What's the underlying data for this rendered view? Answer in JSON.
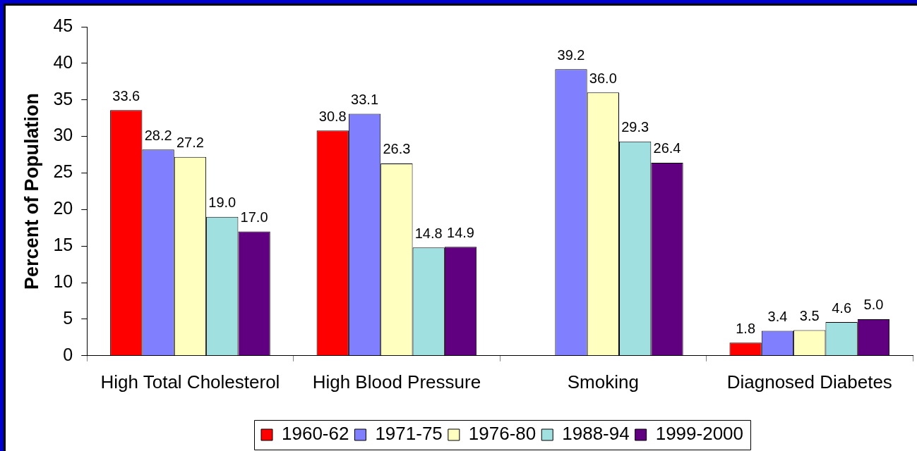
{
  "chart_data": {
    "type": "bar",
    "ylabel": "Percent of Population",
    "categories": [
      "High Total Cholesterol",
      "High Blood Pressure",
      "Smoking",
      "Diagnosed Diabetes"
    ],
    "series": [
      {
        "name": "1960-62",
        "color": "#ff0000",
        "values": [
          33.6,
          30.8,
          null,
          1.8
        ],
        "value_labels": [
          "33.6",
          "30.8",
          null,
          "1.8"
        ]
      },
      {
        "name": "1971-75",
        "color": "#8080ff",
        "values": [
          28.2,
          33.1,
          39.2,
          3.4
        ],
        "value_labels": [
          "28.2",
          "33.1",
          "39.2",
          "3.4"
        ]
      },
      {
        "name": "1976-80",
        "color": "#ffffc0",
        "values": [
          27.2,
          26.3,
          36.0,
          3.5
        ],
        "value_labels": [
          "27.2",
          "26.3",
          "36.0",
          "3.5"
        ]
      },
      {
        "name": "1988-94",
        "color": "#a0e0e0",
        "values": [
          19.0,
          14.8,
          29.3,
          4.6
        ],
        "value_labels": [
          "19.0",
          "14.8",
          "29.3",
          "4.6"
        ]
      },
      {
        "name": "1999-2000",
        "color": "#600080",
        "values": [
          17.0,
          14.9,
          26.4,
          5.0
        ],
        "value_labels": [
          "17.0",
          "14.9",
          "26.4",
          "5.0"
        ]
      }
    ],
    "ylim": [
      0,
      45
    ],
    "yticks": [
      0,
      5,
      10,
      15,
      20,
      25,
      30,
      35,
      40,
      45
    ],
    "grid": false,
    "legend": "bottom"
  }
}
